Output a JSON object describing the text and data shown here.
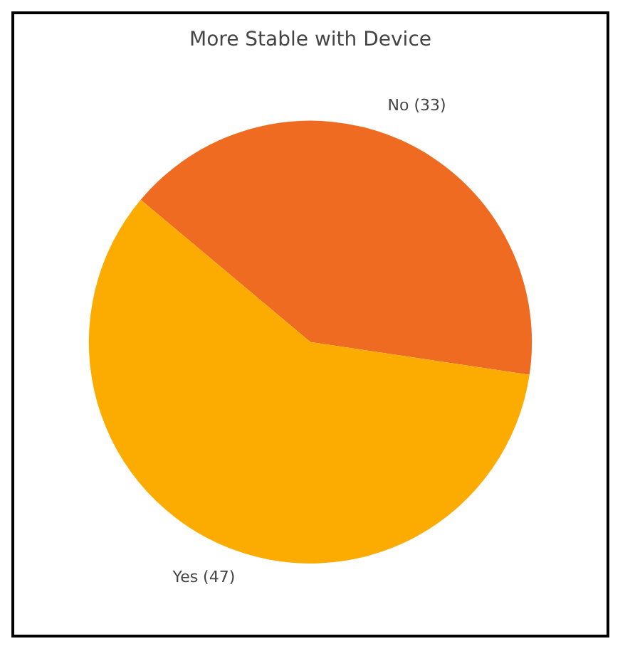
{
  "chart_data": {
    "type": "pie",
    "title": "More Stable with Device",
    "categories": [
      "No (33)",
      "Yes (47)"
    ],
    "values": [
      33,
      47
    ],
    "colors": [
      "#f06b22",
      "#fcac00"
    ],
    "legend": false
  }
}
